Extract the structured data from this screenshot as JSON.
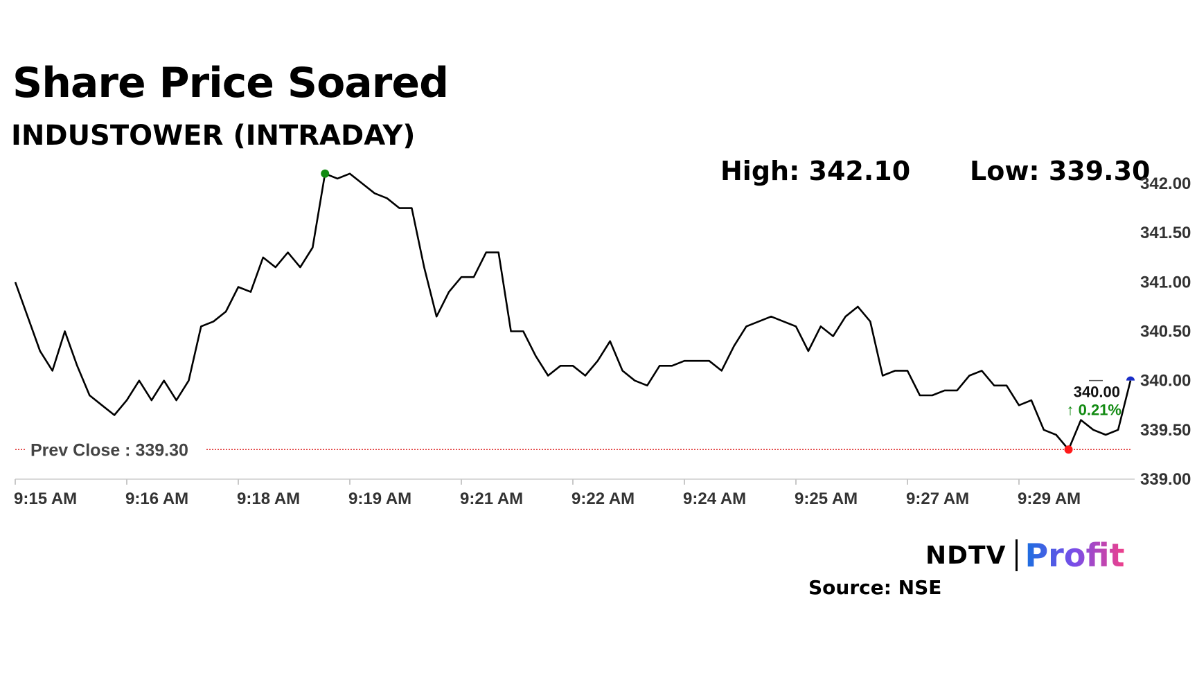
{
  "header": {
    "title": "Share Price Soared",
    "subtitle": "INDUSTOWER (INTRADAY)"
  },
  "stats": {
    "high": "High: 342.10",
    "low": "Low: 339.30"
  },
  "footer": {
    "brand_left": "NDTV",
    "brand_right": "Profit",
    "source": "Source: NSE"
  },
  "chart_data": {
    "type": "line",
    "ylim": [
      339.0,
      342.0
    ],
    "y_ticks": [
      "339.00",
      "339.50",
      "340.00",
      "340.50",
      "341.00",
      "341.50",
      "342.00"
    ],
    "x_tick_labels": [
      "9:15 AM",
      "9:16 AM",
      "9:18 AM",
      "9:19 AM",
      "9:21 AM",
      "9:22 AM",
      "9:24 AM",
      "9:25 AM",
      "9:27 AM",
      "9:29 AM"
    ],
    "x_tick_indices": [
      0,
      9,
      18,
      27,
      36,
      45,
      54,
      63,
      72,
      81
    ],
    "last_index": 90,
    "prev_close": 339.3,
    "prev_close_label": "Prev Close : 339.30",
    "current_price": "340.00",
    "change_label": "↑ 0.21%",
    "high_index": 25,
    "low_index": 85,
    "colors": {
      "line": "#000000",
      "high_marker": "#118a11",
      "low_marker": "#ff1a1a",
      "prev_close_line": "#e03030",
      "change_text": "#118a11",
      "current_marker": "#1a2ec8",
      "axis_text": "#333333"
    },
    "series": [
      {
        "values": [
          341.0,
          340.65,
          340.3,
          340.1,
          340.5,
          340.15,
          339.85,
          339.75,
          339.65,
          339.8,
          340.0,
          339.8,
          340.0,
          339.8,
          340.0,
          340.55,
          340.6,
          340.7,
          340.95,
          340.9,
          341.25,
          341.15,
          341.3,
          341.15,
          341.35,
          342.1,
          342.05,
          342.1,
          342.0,
          341.9,
          341.85,
          341.75,
          341.75,
          341.15,
          340.65,
          340.9,
          341.05,
          341.05,
          341.3,
          341.3,
          340.5,
          340.5,
          340.25,
          340.05,
          340.15,
          340.15,
          340.05,
          340.2,
          340.4,
          340.1,
          340.0,
          339.95,
          340.15,
          340.15,
          340.2,
          340.2,
          340.2,
          340.1,
          340.35,
          340.55,
          340.6,
          340.65,
          340.6,
          340.55,
          340.3,
          340.55,
          340.45,
          340.65,
          340.75,
          340.6,
          340.05,
          340.1,
          340.1,
          339.85,
          339.85,
          339.9,
          339.9,
          340.05,
          340.1,
          339.95,
          339.95,
          339.75,
          339.8,
          339.5,
          339.45,
          339.3,
          339.6,
          339.5,
          339.45,
          339.5,
          340.0
        ]
      }
    ]
  }
}
